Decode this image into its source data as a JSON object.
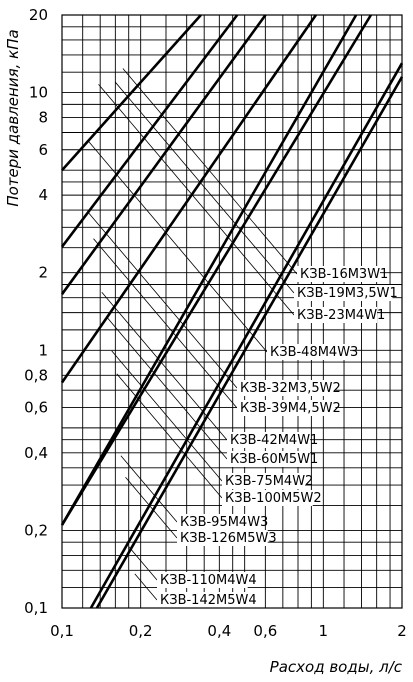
{
  "chart_data": {
    "type": "line",
    "title": "",
    "xlabel": "Расход воды, л/с",
    "ylabel": "Потери давления, кПа",
    "x_scale": "log",
    "y_scale": "log",
    "xlim": [
      0.1,
      2
    ],
    "ylim": [
      0.1,
      20
    ],
    "grid": true,
    "x_ticks": [
      {
        "v": 0.1,
        "t": "0,1"
      },
      {
        "v": 0.2,
        "t": "0,2"
      },
      {
        "v": 0.4,
        "t": "0,4"
      },
      {
        "v": 0.6,
        "t": "0,6"
      },
      {
        "v": 1,
        "t": "1"
      },
      {
        "v": 2,
        "t": "2"
      }
    ],
    "y_ticks": [
      {
        "v": 0.1,
        "t": "0,1"
      },
      {
        "v": 0.2,
        "t": "0,2"
      },
      {
        "v": 0.4,
        "t": "0,4"
      },
      {
        "v": 0.6,
        "t": "0,6"
      },
      {
        "v": 0.8,
        "t": "0,8"
      },
      {
        "v": 1,
        "t": "1"
      },
      {
        "v": 2,
        "t": "2"
      },
      {
        "v": 4,
        "t": "4"
      },
      {
        "v": 6,
        "t": "6"
      },
      {
        "v": 8,
        "t": "8"
      },
      {
        "v": 10,
        "t": "10"
      },
      {
        "v": 20,
        "t": "20"
      }
    ],
    "series": [
      {
        "name": "КЗВ-16М3W1",
        "x": [
          0.1,
          0.34
        ],
        "y": [
          5,
          20
        ]
      },
      {
        "name": "КЗВ-19М3,5W1",
        "x": [
          0.1,
          0.468
        ],
        "y": [
          2.52,
          20
        ]
      },
      {
        "name": "КЗВ-23М4W1",
        "x": [
          0.1,
          0.601
        ],
        "y": [
          1.65,
          20
        ]
      },
      {
        "name": "КЗВ-48М4W3",
        "x": [
          0.1,
          0.937
        ],
        "y": [
          0.75,
          20
        ]
      },
      {
        "name": "КЗВ-32М3,5W2",
        "x": [
          0.1,
          1.335
        ],
        "y": [
          0.21,
          20
        ]
      },
      {
        "name": "КЗВ-39М4,5W2",
        "x": [
          0.1,
          1.52
        ],
        "y": [
          0.21,
          20
        ]
      },
      {
        "name": "КЗВ-110М4W4",
        "x": [
          0.129,
          2
        ],
        "y": [
          0.1,
          13
        ]
      },
      {
        "name": "КЗВ-142М5W4",
        "x": [
          0.136,
          2
        ],
        "y": [
          0.1,
          11.5
        ]
      }
    ],
    "labels": [
      {
        "text": "КЗВ-16М3W1",
        "x": 0.171
      },
      {
        "text": "КЗВ-19М3,5W1",
        "x": 0.16
      },
      {
        "text": "КЗВ-23М4W1",
        "x": 0.138
      },
      {
        "text": "КЗВ-48М4W3",
        "x": 0.126
      },
      {
        "text": "КЗВ-32М3,5W2",
        "x": 0.125
      },
      {
        "text": "КЗВ-39М4,5W2",
        "x": 0.132
      },
      {
        "text": "КЗВ-42М4W1",
        "x": 0.142
      },
      {
        "text": "КЗВ-60М5W1",
        "x": 0.148
      },
      {
        "text": "КЗВ-75М4W2",
        "x": 0.155
      },
      {
        "text": "КЗВ-100М5W2",
        "x": 0.162
      },
      {
        "text": "КЗВ-95М4W3",
        "x": 0.168
      },
      {
        "text": "КЗВ-126М5W3",
        "x": 0.175
      },
      {
        "text": "КЗВ-110М4W4",
        "x": 0.18
      },
      {
        "text": "КЗВ-142М5W4",
        "x": 0.19
      }
    ]
  }
}
